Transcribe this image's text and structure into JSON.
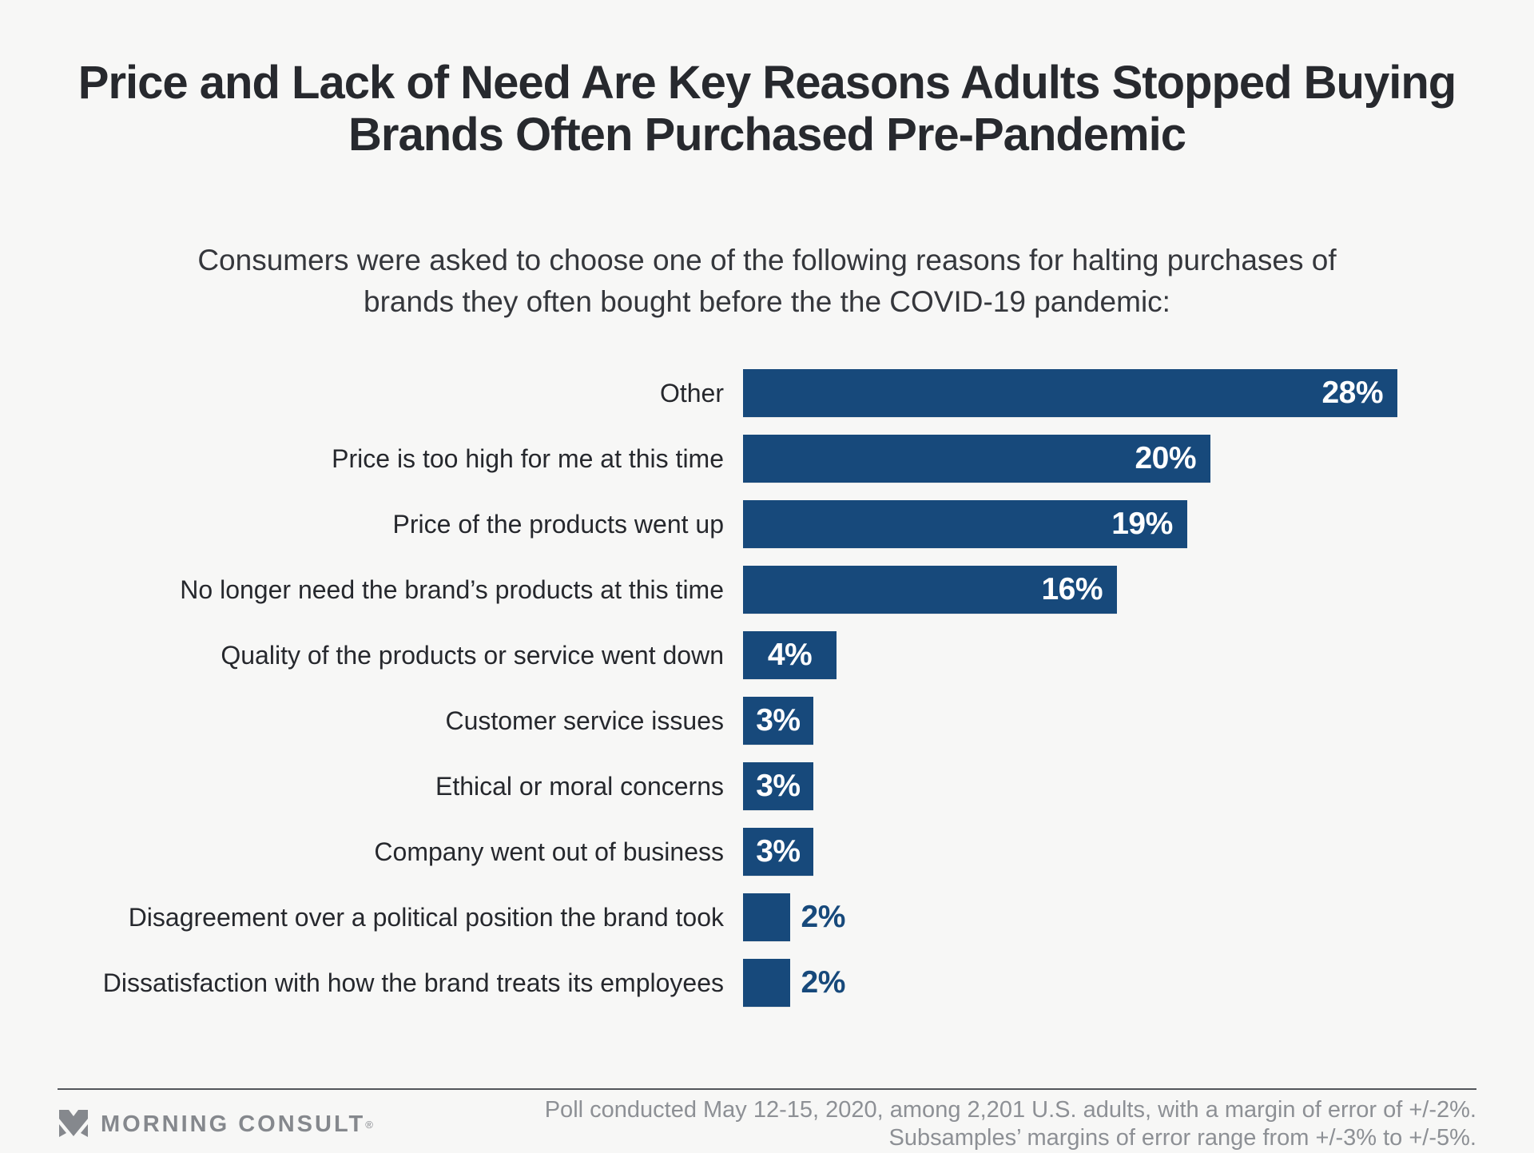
{
  "chart_data": {
    "type": "bar",
    "orientation": "horizontal",
    "title": "Price and Lack of Need Are Key Reasons Adults Stopped Buying Brands Often Purchased Pre-Pandemic",
    "subtitle": "Consumers were asked to choose one of the following reasons for halting purchases of brands they often bought before the the COVID-19 pandemic:",
    "categories": [
      "Other",
      "Price is too high for me at this time",
      "Price of the products went up",
      "No longer need the brand’s products at this time",
      "Quality of the products or service went down",
      "Customer service issues",
      "Ethical or moral concerns",
      "Company went out of business",
      "Disagreement over a political position the brand took",
      "Dissatisfaction with how the brand treats its employees"
    ],
    "values": [
      28,
      20,
      19,
      16,
      4,
      3,
      3,
      3,
      2,
      2
    ],
    "value_suffix": "%",
    "xlim": [
      0,
      33
    ],
    "grid": false,
    "legend": "none",
    "bar_color": "#17497B",
    "value_label_color_inside": "#FFFFFF",
    "value_label_color_outside": "#17497B"
  },
  "footer": {
    "brand": "MORNING CONSULT",
    "registered": "®",
    "logo_icon": "morning-consult-m-icon",
    "note_line1": "Poll conducted May 12-15, 2020, among 2,201 U.S. adults, with a margin of error of +/-2%.",
    "note_line2": "Subsamples’ margins of error range from +/-3% to +/-5%."
  },
  "colors": {
    "background": "#F7F7F6",
    "title_text": "#27292E",
    "label_text": "#26282D",
    "footer_text": "#8D9095",
    "divider": "#53565B",
    "accent_navy": "#17497B"
  }
}
